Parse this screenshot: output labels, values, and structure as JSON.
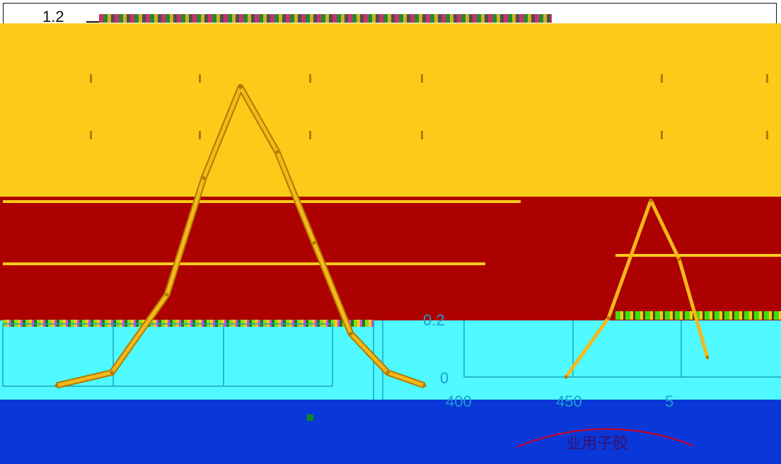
{
  "colors": {
    "band_top": "#ffffff",
    "band_yellow": "#fccb1a",
    "band_red": "#ad0000",
    "band_cyan": "#4ff9ff",
    "band_blue": "#0a37d8",
    "curve": "#f5b81a",
    "curve_outline": "#b07a00",
    "grid": "#1aa4c4",
    "axis_text_cyan": "#1a9fd0",
    "watermark_arc": "#d4001a",
    "marker_green": "#0d8a1a"
  },
  "chart_data": [
    {
      "type": "line",
      "title": "",
      "xlabel": "",
      "ylabel": "",
      "ylim": [
        0,
        1.2
      ],
      "y_tick_labels_visible": [
        "1.2"
      ],
      "grid": true,
      "series": [
        {
          "x": [
            400,
            415,
            430,
            440,
            450,
            460,
            470,
            480,
            490,
            500
          ],
          "y": [
            0.0,
            0.05,
            0.35,
            0.8,
            1.15,
            0.9,
            0.55,
            0.2,
            0.05,
            0.0
          ]
        }
      ]
    },
    {
      "type": "line",
      "title": "",
      "xlabel": "",
      "ylabel": "",
      "xlim": [
        400,
        500
      ],
      "ylim": [
        0,
        1.2
      ],
      "x_tick_labels_visible": [
        "400",
        "450",
        "5"
      ],
      "y_tick_labels_visible": [
        "0.2",
        "0"
      ],
      "grid": true,
      "series": [
        {
          "x": [
            400,
            430,
            460,
            480,
            500
          ],
          "y": [
            0.0,
            0.3,
            0.9,
            0.6,
            0.1
          ]
        }
      ]
    }
  ],
  "text": {
    "top_tick": "1.2",
    "right_tick_02": "0.2",
    "right_tick_0": "0",
    "right_x_400": "400",
    "right_x_450": "450",
    "right_x_5": "5",
    "watermark": "业用子胶"
  }
}
